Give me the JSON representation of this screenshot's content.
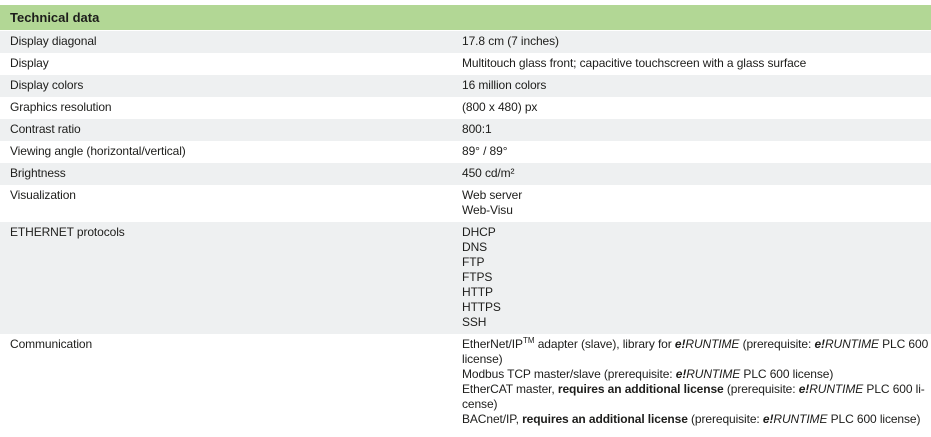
{
  "table": {
    "title": "Technical data",
    "colors": {
      "header_bg": "#b2d795",
      "row_alt_bg": "#eef0f1",
      "text": "#1d1d1b"
    },
    "rows": [
      {
        "label": "Display diagonal",
        "shaded": true,
        "value": [
          [
            "17.8 cm (7 inches)"
          ]
        ]
      },
      {
        "label": "Display",
        "shaded": false,
        "value": [
          [
            "Multitouch glass front; capacitive touchscreen with a glass surface"
          ]
        ]
      },
      {
        "label": "Display colors",
        "shaded": true,
        "value": [
          [
            "16 million colors"
          ]
        ]
      },
      {
        "label": "Graphics resolution",
        "shaded": false,
        "value": [
          [
            "(800 x 480) px"
          ]
        ]
      },
      {
        "label": "Contrast ratio",
        "shaded": true,
        "value": [
          [
            "800:1"
          ]
        ]
      },
      {
        "label": "Viewing angle (horizontal/vertical)",
        "shaded": false,
        "value": [
          [
            "89° / 89°"
          ]
        ]
      },
      {
        "label": "Brightness",
        "shaded": true,
        "value": [
          [
            "450 cd/m²"
          ]
        ]
      },
      {
        "label": "Visualization",
        "shaded": false,
        "value": [
          [
            "Web server"
          ],
          [
            "Web-Visu"
          ]
        ]
      },
      {
        "label": "ETHERNET protocols",
        "shaded": true,
        "value": [
          [
            "DHCP"
          ],
          [
            "DNS"
          ],
          [
            "FTP"
          ],
          [
            "FTPS"
          ],
          [
            "HTTP"
          ],
          [
            "HTTPS"
          ],
          [
            "SSH"
          ]
        ]
      },
      {
        "label": "Communication",
        "shaded": false,
        "value": [
          [
            "EtherNet/IP",
            {
              "t": "TM",
              "sup": true
            },
            " adapter (slave), library for ",
            {
              "t": "e!",
              "b": true,
              "i": true
            },
            {
              "t": "RUNTIME",
              "i": true
            },
            " (prerequisite: ",
            {
              "t": "e!",
              "b": true,
              "i": true
            },
            {
              "t": "RUNTIME",
              "i": true
            },
            " PLC 600"
          ],
          [
            "license)"
          ],
          [
            "Modbus TCP master/slave (prerequisite: ",
            {
              "t": "e!",
              "b": true,
              "i": true
            },
            {
              "t": "RUNTIME",
              "i": true
            },
            " PLC 600 license)"
          ],
          [
            "EtherCAT master, ",
            {
              "t": "requires an additional license",
              "b": true
            },
            " (prerequisite: ",
            {
              "t": "e!",
              "b": true,
              "i": true
            },
            {
              "t": "RUNTIME",
              "i": true
            },
            " PLC 600 li-"
          ],
          [
            "cense)"
          ],
          [
            "BACnet/IP, ",
            {
              "t": "requires an additional license",
              "b": true
            },
            " (prerequisite: ",
            {
              "t": "e!",
              "b": true,
              "i": true
            },
            {
              "t": "RUNTIME",
              "i": true
            },
            " PLC 600 license)"
          ]
        ]
      }
    ]
  }
}
